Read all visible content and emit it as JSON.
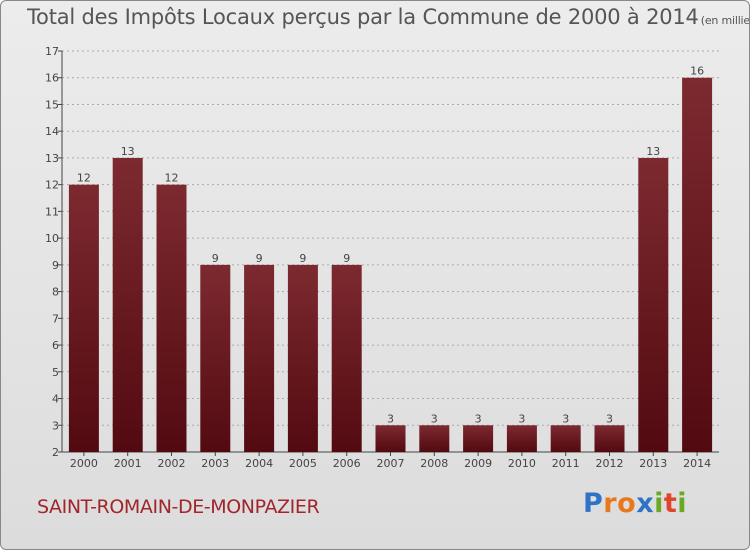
{
  "header": {
    "title": "Total des Impôts Locaux perçus par la Commune de 2000 à 2014",
    "unit": "(en milliers d'€)"
  },
  "footer": {
    "commune": "SAINT-ROMAIN-DE-MONPAZIER",
    "logo_letters": [
      "P",
      "r",
      "o",
      "x",
      "i",
      "t",
      "i"
    ],
    "logo_colors": [
      "#2f73c7",
      "#e8781e",
      "#e8781e",
      "#2f73c7",
      "#6aaa22",
      "#e0452a",
      "#6aaa22"
    ]
  },
  "colors": {
    "bar_top": "#7c2a30",
    "bar_bottom": "#520a10",
    "axis": "#444444",
    "grid": "#aaaaaa",
    "text": "#444444"
  },
  "chart_data": {
    "type": "bar",
    "title": "Total des Impôts Locaux perçus par la Commune de 2000 à 2014",
    "unit": "(en milliers d'€)",
    "categories": [
      "2000",
      "2001",
      "2002",
      "2003",
      "2004",
      "2005",
      "2006",
      "2007",
      "2008",
      "2009",
      "2010",
      "2011",
      "2012",
      "2013",
      "2014"
    ],
    "values": [
      12,
      13,
      12,
      9,
      9,
      9,
      9,
      3,
      3,
      3,
      3,
      3,
      3,
      13,
      16
    ],
    "value_labels": [
      "12",
      "13",
      "12",
      "9",
      "9",
      "9",
      "9",
      "3",
      "3",
      "3",
      "3",
      "3",
      "3",
      "13",
      "16"
    ],
    "yticks": [
      "2",
      "3",
      "4",
      "5",
      "6",
      "7",
      "8",
      "9",
      "10",
      "11",
      "12",
      "13",
      "14",
      "15",
      "16",
      "17"
    ],
    "ylim": [
      2,
      17
    ],
    "xlabel": "",
    "ylabel": ""
  }
}
